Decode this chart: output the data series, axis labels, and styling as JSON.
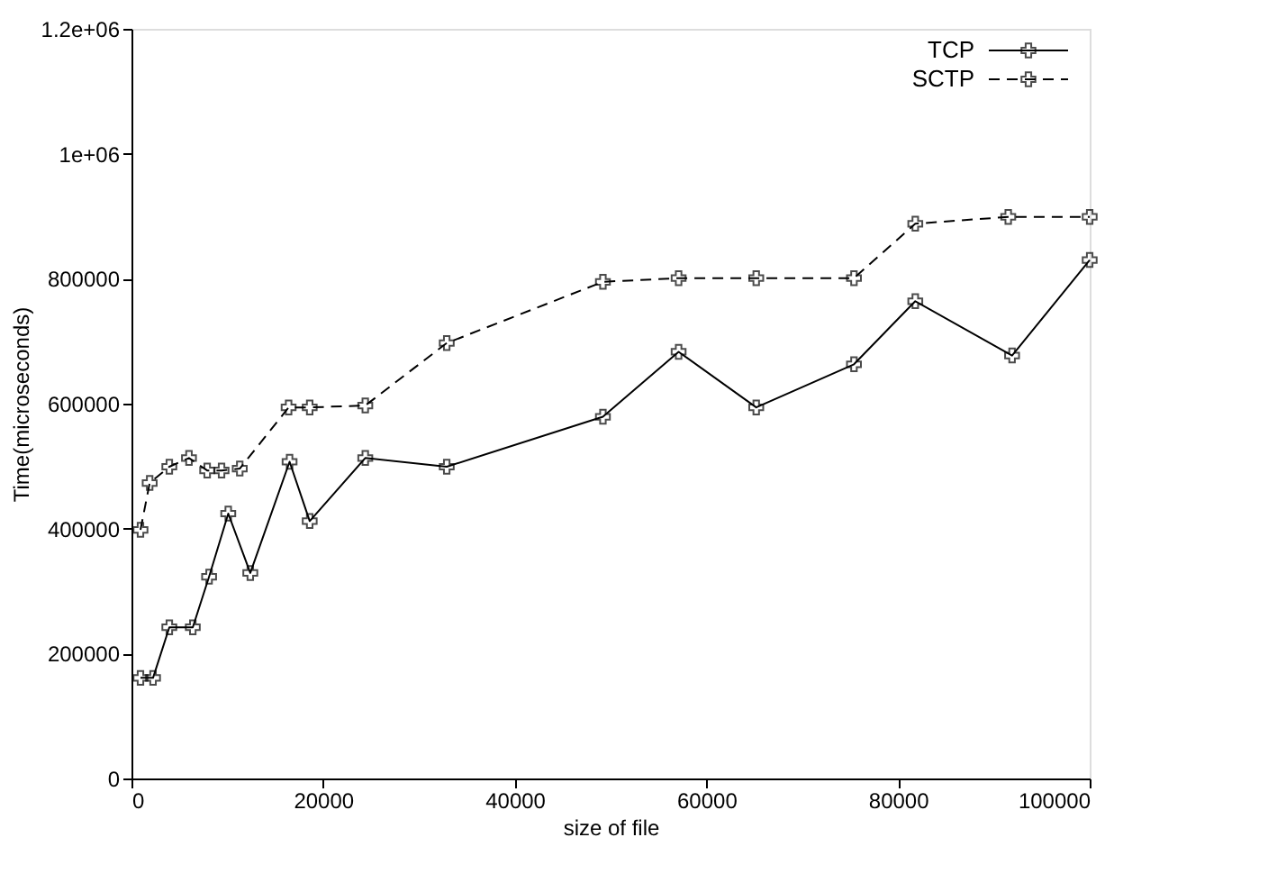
{
  "chart_data": {
    "type": "line",
    "xlabel": "size of file",
    "ylabel": "Time(microseconds)",
    "xlim": [
      0,
      100000
    ],
    "xticks": [
      0,
      20000,
      40000,
      60000,
      80000,
      100000
    ],
    "ylim": [
      0,
      1200000
    ],
    "yticks": [
      0,
      200000,
      400000,
      600000,
      800000,
      {
        "value": 1000000,
        "label": "1e+06"
      },
      {
        "value": 1200000,
        "label": "1.2e+06"
      }
    ],
    "grid": false,
    "legend": "top right",
    "series": [
      {
        "name": "TCP",
        "color": "#000000",
        "line_style": "solid",
        "marker": "cross",
        "x": [
          940,
          2250,
          3950,
          6400,
          8100,
          10100,
          12400,
          16500,
          18600,
          24400,
          32900,
          49200,
          57100,
          65200,
          75400,
          81800,
          91900,
          100000
        ],
        "values": [
          161000,
          161000,
          242000,
          242000,
          323000,
          424000,
          329000,
          507000,
          412000,
          513000,
          499000,
          579000,
          683000,
          594000,
          663000,
          764000,
          677000,
          830000
        ]
      },
      {
        "name": "SCTP",
        "color": "#000000",
        "line_style": "dashed",
        "marker": "cross",
        "x": [
          940,
          1900,
          3950,
          6000,
          7900,
          9400,
          11300,
          16400,
          18600,
          24400,
          32900,
          49200,
          57100,
          65200,
          75400,
          81800,
          91500,
          100000
        ],
        "values": [
          398000,
          473000,
          499000,
          513000,
          493000,
          493000,
          496000,
          594000,
          594000,
          597000,
          697000,
          795000,
          801000,
          801000,
          801000,
          888000,
          899000,
          899000
        ]
      }
    ]
  }
}
